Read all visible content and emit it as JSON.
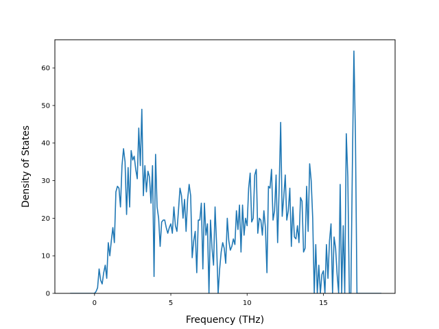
{
  "chart_data": {
    "type": "line",
    "xlabel": "Frequency (THz)",
    "ylabel": "Density of States",
    "xlim": [
      -2.6,
      19.7
    ],
    "ylim": [
      0,
      67.5
    ],
    "xticks": [
      0,
      5,
      10,
      15
    ],
    "yticks": [
      0,
      10,
      20,
      30,
      40,
      50,
      60
    ],
    "grid": false,
    "series": [
      {
        "color": "#1f77b4",
        "x": [
          -1.6,
          -0.5,
          0.0,
          0.1,
          0.2,
          0.3,
          0.4,
          0.5,
          0.6,
          0.7,
          0.8,
          0.9,
          1.0,
          1.1,
          1.2,
          1.3,
          1.4,
          1.5,
          1.6,
          1.7,
          1.8,
          1.9,
          2.0,
          2.1,
          2.2,
          2.3,
          2.4,
          2.5,
          2.6,
          2.7,
          2.8,
          2.9,
          3.0,
          3.1,
          3.2,
          3.3,
          3.4,
          3.5,
          3.6,
          3.7,
          3.8,
          3.9,
          4.0,
          4.1,
          4.2,
          4.3,
          4.4,
          4.5,
          4.6,
          4.7,
          4.8,
          4.9,
          5.0,
          5.1,
          5.2,
          5.3,
          5.4,
          5.5,
          5.6,
          5.7,
          5.8,
          5.9,
          6.0,
          6.1,
          6.2,
          6.3,
          6.4,
          6.5,
          6.6,
          6.7,
          6.8,
          6.9,
          7.0,
          7.1,
          7.2,
          7.3,
          7.4,
          7.5,
          7.6,
          7.7,
          7.8,
          7.9,
          8.0,
          8.1,
          8.2,
          8.3,
          8.4,
          8.5,
          8.6,
          8.7,
          8.8,
          8.9,
          9.0,
          9.1,
          9.2,
          9.3,
          9.4,
          9.5,
          9.6,
          9.7,
          9.8,
          9.9,
          10.0,
          10.1,
          10.2,
          10.3,
          10.4,
          10.5,
          10.6,
          10.7,
          10.8,
          10.9,
          11.0,
          11.1,
          11.2,
          11.3,
          11.4,
          11.5,
          11.6,
          11.7,
          11.8,
          11.9,
          12.0,
          12.1,
          12.2,
          12.3,
          12.4,
          12.5,
          12.6,
          12.7,
          12.8,
          12.9,
          13.0,
          13.1,
          13.2,
          13.3,
          13.4,
          13.5,
          13.6,
          13.7,
          13.8,
          13.9,
          14.0,
          14.1,
          14.2,
          14.3,
          14.4,
          14.5,
          14.6,
          14.7,
          14.8,
          14.9,
          15.0,
          15.1,
          15.2,
          15.3,
          15.4,
          15.5,
          15.6,
          15.7,
          15.8,
          15.9,
          16.0,
          16.1,
          16.2,
          16.3,
          16.4,
          16.5,
          16.6,
          16.7,
          16.8,
          16.9,
          17.0,
          17.1,
          17.2,
          17.3,
          17.5,
          18.5,
          18.8
        ],
        "y": [
          0,
          0,
          0,
          0.5,
          1.5,
          6.5,
          3.5,
          2.5,
          5.5,
          7.5,
          4.0,
          13.5,
          10.0,
          14.0,
          17.5,
          13.5,
          27.0,
          28.5,
          28.0,
          23.0,
          34.0,
          38.5,
          35.0,
          21.0,
          33.5,
          23.0,
          38.0,
          35.5,
          36.5,
          33.0,
          30.5,
          44.0,
          34.0,
          49.0,
          26.0,
          34.0,
          27.0,
          32.5,
          31.0,
          24.0,
          34.0,
          4.5,
          37.0,
          23.0,
          20.0,
          12.5,
          19.0,
          19.5,
          19.5,
          17.5,
          16.0,
          17.5,
          18.5,
          16.0,
          23.0,
          18.0,
          16.5,
          22.0,
          28.0,
          26.0,
          20.0,
          25.0,
          16.5,
          25.0,
          29.0,
          26.0,
          9.5,
          14.0,
          16.5,
          5.5,
          19.5,
          19.5,
          24.0,
          6.5,
          24.0,
          15.5,
          18.5,
          0,
          19.5,
          12.0,
          7.5,
          23.0,
          13.0,
          0,
          6.5,
          11.0,
          13.5,
          12.0,
          8.0,
          20.0,
          14.0,
          11.5,
          12.5,
          14.5,
          13.0,
          22.0,
          17.0,
          23.5,
          11.0,
          23.5,
          15.5,
          20.0,
          18.0,
          28.0,
          32.0,
          19.0,
          20.0,
          31.5,
          33.0,
          16.0,
          20.0,
          19.5,
          15.5,
          22.0,
          17.5,
          5.5,
          28.5,
          28.0,
          33.0,
          19.5,
          22.0,
          31.5,
          13.5,
          28.0,
          45.5,
          20.5,
          25.5,
          31.5,
          19.5,
          22.0,
          28.0,
          12.5,
          23.0,
          15.0,
          14.5,
          18.0,
          13.5,
          25.5,
          24.5,
          11.0,
          12.0,
          28.5,
          16.5,
          34.5,
          30.0,
          20.0,
          0,
          13.0,
          0,
          7.5,
          0,
          5.0,
          6.0,
          0,
          13.0,
          4.0,
          14.0,
          18.5,
          0,
          15.0,
          12.0,
          5.0,
          0,
          29.0,
          0,
          18.0,
          0,
          42.5,
          31.0,
          0,
          0,
          34.0,
          64.5,
          42.0,
          0,
          0,
          0,
          0,
          0
        ]
      }
    ]
  }
}
